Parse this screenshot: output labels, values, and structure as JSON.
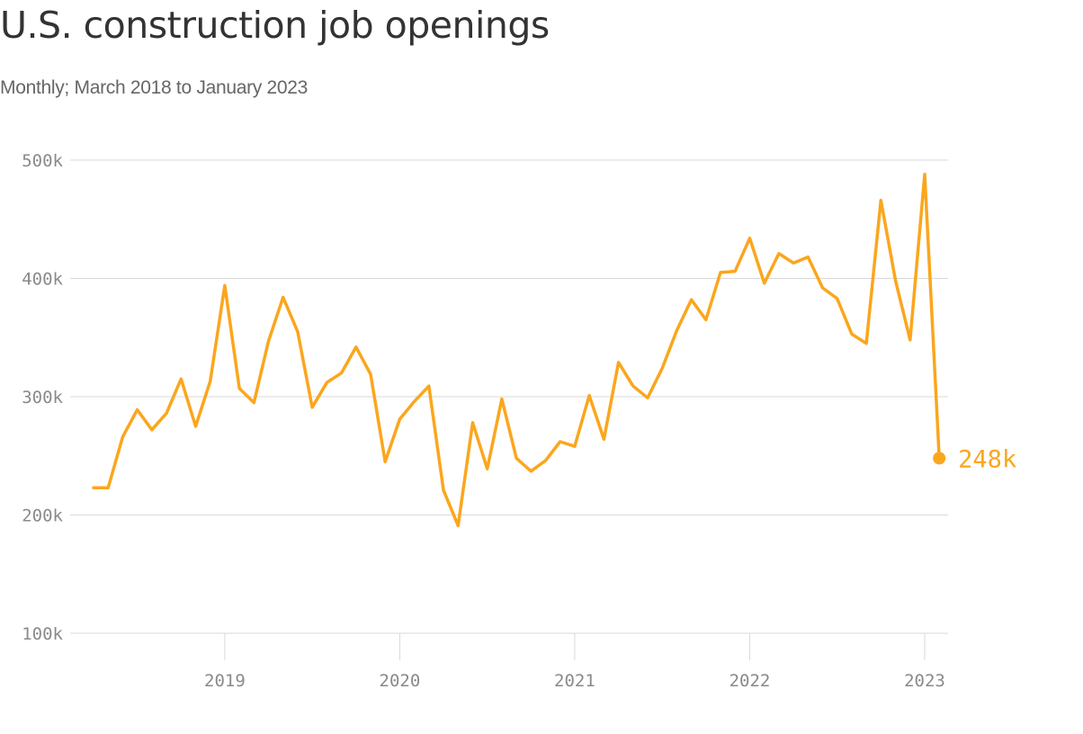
{
  "title": "U.S. construction job openings",
  "subtitle": "Monthly; March 2018 to January 2023",
  "colors": {
    "line": "#fba61d",
    "grid": "#d9d9d9",
    "tick_text": "#8a8a8a",
    "title": "#333333",
    "subtitle": "#666666"
  },
  "chart_data": {
    "type": "line",
    "title": "U.S. construction job openings",
    "subtitle": "Monthly; March 2018 to January 2023",
    "xlabel": "",
    "ylabel": "",
    "ylim": [
      100000,
      500000
    ],
    "xlim": [
      "2018-03",
      "2023-02"
    ],
    "grid": "horizontal",
    "y_ticks": [
      {
        "value": 500000,
        "label": "500k"
      },
      {
        "value": 400000,
        "label": "400k"
      },
      {
        "value": 300000,
        "label": "300k"
      },
      {
        "value": 200000,
        "label": "200k"
      },
      {
        "value": 100000,
        "label": "100k"
      }
    ],
    "x_ticks": [
      {
        "value": "2019-01",
        "label": "2019"
      },
      {
        "value": "2020-01",
        "label": "2020"
      },
      {
        "value": "2021-01",
        "label": "2021"
      },
      {
        "value": "2022-01",
        "label": "2022"
      },
      {
        "value": "2023-01",
        "label": "2023"
      }
    ],
    "end_label": "248k",
    "x": [
      "2018-04",
      "2018-05",
      "2018-06",
      "2018-07",
      "2018-08",
      "2018-09",
      "2018-10",
      "2018-11",
      "2018-12",
      "2019-01",
      "2019-02",
      "2019-03",
      "2019-04",
      "2019-05",
      "2019-06",
      "2019-07",
      "2019-08",
      "2019-09",
      "2019-10",
      "2019-11",
      "2019-12",
      "2020-01",
      "2020-02",
      "2020-03",
      "2020-04",
      "2020-05",
      "2020-06",
      "2020-07",
      "2020-08",
      "2020-09",
      "2020-10",
      "2020-11",
      "2020-12",
      "2021-01",
      "2021-02",
      "2021-03",
      "2021-04",
      "2021-05",
      "2021-06",
      "2021-07",
      "2021-08",
      "2021-09",
      "2021-10",
      "2021-11",
      "2021-12",
      "2022-01",
      "2022-02",
      "2022-03",
      "2022-04",
      "2022-05",
      "2022-06",
      "2022-07",
      "2022-08",
      "2022-09",
      "2022-10",
      "2022-11",
      "2022-12",
      "2023-01",
      "2023-02"
    ],
    "series": [
      {
        "values": [
          223000,
          223000,
          266000,
          289000,
          272000,
          286000,
          315000,
          275000,
          313000,
          394000,
          307000,
          295000,
          347000,
          384000,
          355000,
          291000,
          312000,
          320000,
          342000,
          319000,
          245000,
          281000,
          296000,
          309000,
          221000,
          191000,
          278000,
          239000,
          298000,
          248000,
          237000,
          246000,
          262000,
          258000,
          301000,
          264000,
          329000,
          309000,
          299000,
          324000,
          356000,
          382000,
          365000,
          405000,
          406000,
          434000,
          396000,
          421000,
          413000,
          418000,
          392000,
          383000,
          353000,
          345000,
          466000,
          398000,
          348000,
          488000,
          248000
        ]
      }
    ]
  }
}
